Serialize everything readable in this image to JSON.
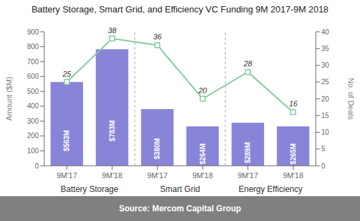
{
  "chart_data": {
    "type": "bar",
    "title": "Battery Storage, Smart Grid, and Efficiency VC Funding 9M 2017-9M 2018",
    "categories": [
      "9M'17",
      "9M'18",
      "9M'17",
      "9M'18",
      "9M'17",
      "9M'18"
    ],
    "groups": [
      "Battery Storage",
      "Smart Grid",
      "Energy Efficiency"
    ],
    "annotations": [
      "Source: Mercom Capital Group"
    ],
    "ylabel": "Amount ($M)",
    "y2label": "No. of Deals",
    "series": [
      {
        "type": "bar",
        "color": "#8884d8",
        "values": [
          563,
          783,
          380,
          264,
          289,
          265
        ],
        "value_labels": [
          "$563M",
          "$783M",
          "$380M",
          "$264M",
          "$289M",
          "$265M"
        ],
        "data_labels": true
      },
      {
        "type": "line",
        "axis": "y2",
        "color": "#82ca9d",
        "marker": "square",
        "values": [
          25,
          38,
          36,
          20,
          28,
          16
        ],
        "data_labels": true
      }
    ],
    "ylim": [
      0,
      900
    ],
    "yticks": [
      0,
      100,
      200,
      300,
      400,
      500,
      600,
      700,
      800,
      900
    ],
    "y2lim": [
      0,
      40
    ],
    "y2ticks": [
      0,
      5,
      10,
      15,
      20,
      25,
      30,
      35,
      40
    ],
    "grid": false
  }
}
